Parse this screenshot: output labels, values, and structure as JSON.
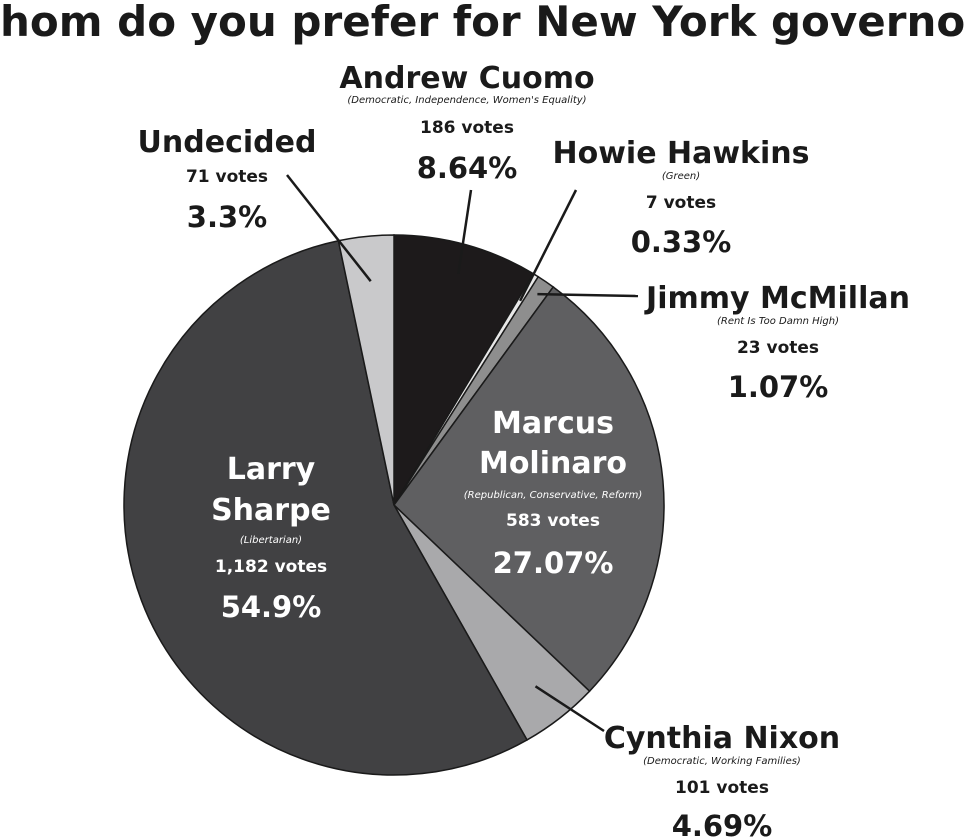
{
  "chart_data": {
    "type": "pie",
    "title": "Whom do you prefer for New York governor?",
    "start": "12 o'clock, clockwise",
    "slices": [
      {
        "name": "Andrew Cuomo",
        "party": "(Democratic, Independence, Women's Equality)",
        "votes": 186,
        "votes_label": "186 votes",
        "percent": 8.64,
        "percent_label": "8.64%",
        "color": "#1d1a1b"
      },
      {
        "name": "Howie Hawkins",
        "party": "(Green)",
        "votes": 7,
        "votes_label": "7 votes",
        "percent": 0.33,
        "percent_label": "0.33%",
        "color": "#e8e8e8"
      },
      {
        "name": "Jimmy McMillan",
        "party": "(Rent Is Too Damn High)",
        "votes": 23,
        "votes_label": "23 votes",
        "percent": 1.07,
        "percent_label": "1.07%",
        "color": "#8e8e8e"
      },
      {
        "name": "Marcus Molinaro",
        "party": "(Republican, Conservative, Reform)",
        "votes": 583,
        "votes_label": "583 votes",
        "percent": 27.07,
        "percent_label": "27.07%",
        "color": "#5f5f61"
      },
      {
        "name": "Cynthia Nixon",
        "party": "(Democratic, Working Families)",
        "votes": 101,
        "votes_label": "101 votes",
        "percent": 4.69,
        "percent_label": "4.69%",
        "color": "#a9a9ab"
      },
      {
        "name": "Larry Sharpe",
        "party": "(Libertarian)",
        "votes": 1182,
        "votes_label": "1,182 votes",
        "percent": 54.9,
        "percent_label": "54.9%",
        "color": "#414143"
      },
      {
        "name": "Undecided",
        "party": "",
        "votes": 71,
        "votes_label": "71 votes",
        "percent": 3.3,
        "percent_label": "3.3%",
        "color": "#c9c9cb"
      }
    ],
    "sharpe_name_lines": [
      "Larry",
      "Sharpe"
    ],
    "molinaro_name_lines": [
      "Marcus",
      "Molinaro"
    ]
  }
}
